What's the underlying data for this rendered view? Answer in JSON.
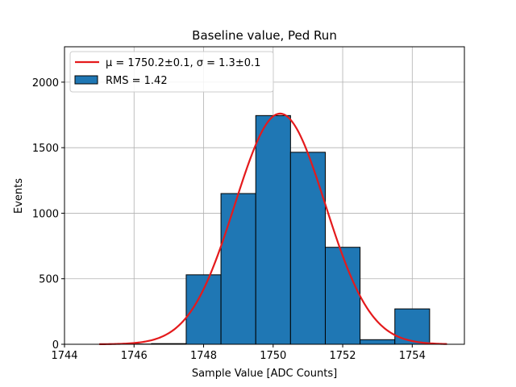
{
  "chart_data": {
    "type": "bar",
    "title": "Baseline value, Ped Run",
    "xlabel": "Sample Value [ADC Counts]",
    "ylabel": "Events",
    "xlim": [
      1744,
      1755.5
    ],
    "ylim": [
      0,
      2270
    ],
    "grid": true,
    "legend_placement": "top-left",
    "x_ticks": [
      1744,
      1746,
      1748,
      1750,
      1752,
      1754
    ],
    "y_ticks": [
      0,
      500,
      1000,
      1500,
      2000
    ],
    "histogram": {
      "name": "RMS = 1.42",
      "color": "#1f77b4",
      "bin_edges": [
        1744.5,
        1745.5,
        1746.5,
        1747.5,
        1748.5,
        1749.5,
        1750.5,
        1751.5,
        1752.5,
        1753.5,
        1754.5
      ],
      "counts": [
        0,
        2,
        5,
        530,
        1150,
        1745,
        1465,
        740,
        35,
        270
      ]
    },
    "fit": {
      "name": "$\\mu = 1750.2 \\pm 0.1$, $\\sigma = 1.3 \\pm 0.1$",
      "label_text": "μ = 1750.2±0.1, σ = 1.3±0.1",
      "color": "#e41a1c",
      "mu": 1750.2,
      "sigma": 1.3,
      "amplitude": 1760,
      "x_range": [
        1745,
        1755
      ]
    }
  }
}
